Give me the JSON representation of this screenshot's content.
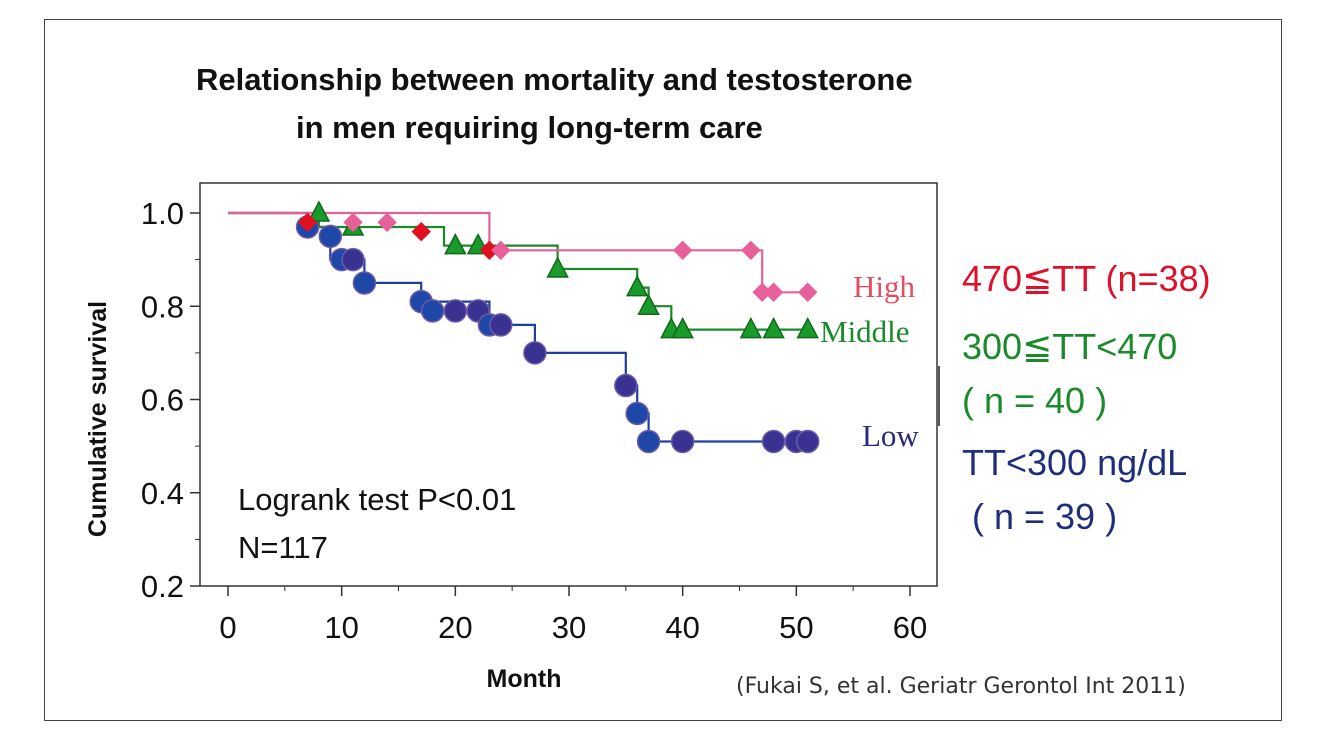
{
  "title_line1": "Relationship between mortality and testosterone",
  "title_line2": "in men requiring long-term care",
  "stats_line1": "Logrank test  P<0.01",
  "stats_line2": "N=117",
  "citation": "(Fukai S, et al. Geriatr Gerontol Int 2011)",
  "right_legend": {
    "high": "470≦TT (n=38)",
    "middle_line1": "300≦TT<470",
    "middle_line2": "( n = 40 )",
    "low_line1": "TT<300 ng/dL",
    "low_line2": "( n = 39 )"
  },
  "colors": {
    "high_line": "#e8609a",
    "high_marker": "#e8609a",
    "high_marker_alt": "#e01020",
    "middle_line": "#1a8a2a",
    "middle_marker_fill": "#1a9a2a",
    "middle_marker_stroke": "#0f6a1a",
    "low_line": "#1f3f9a",
    "low_marker_blue": "#1f47a8",
    "low_marker_purple": "#3a3290",
    "high_label": "#e05060",
    "middle_label": "#1a8a2a",
    "low_label": "#2a2a7a"
  },
  "chart_data": {
    "type": "line",
    "subtype": "kaplan-meier",
    "xlabel": "Month",
    "ylabel": "Cumulative survival",
    "xlim": [
      -2,
      62
    ],
    "ylim": [
      0.2,
      1.04
    ],
    "xticks": [
      "0",
      "10",
      "20",
      "30",
      "40",
      "50",
      "60"
    ],
    "xtick_values": [
      0,
      10,
      20,
      30,
      40,
      50,
      60
    ],
    "yticks": [
      "1.0",
      "0.8",
      "0.6",
      "0.4",
      "0.2"
    ],
    "ytick_values": [
      1.0,
      0.8,
      0.6,
      0.4,
      0.2
    ],
    "series": [
      {
        "name": "High",
        "key": "high",
        "steps": [
          [
            0,
            1.0
          ],
          [
            23,
            1.0
          ],
          [
            23,
            0.92
          ],
          [
            47,
            0.92
          ],
          [
            47,
            0.83
          ],
          [
            51,
            0.83
          ]
        ],
        "markers": [
          {
            "x": 7,
            "y": 0.98,
            "alt": true
          },
          {
            "x": 11,
            "y": 0.98
          },
          {
            "x": 14,
            "y": 0.98
          },
          {
            "x": 17,
            "y": 0.96,
            "alt": true
          },
          {
            "x": 23,
            "y": 0.92,
            "alt": true
          },
          {
            "x": 24,
            "y": 0.92
          },
          {
            "x": 40,
            "y": 0.92
          },
          {
            "x": 46,
            "y": 0.92
          },
          {
            "x": 47,
            "y": 0.83
          },
          {
            "x": 48,
            "y": 0.83
          },
          {
            "x": 51,
            "y": 0.83
          }
        ]
      },
      {
        "name": "Middle",
        "key": "middle",
        "steps": [
          [
            0,
            1.0
          ],
          [
            8,
            1.0
          ],
          [
            8,
            0.97
          ],
          [
            19,
            0.97
          ],
          [
            19,
            0.93
          ],
          [
            29,
            0.93
          ],
          [
            29,
            0.88
          ],
          [
            36,
            0.88
          ],
          [
            36,
            0.84
          ],
          [
            37,
            0.84
          ],
          [
            37,
            0.8
          ],
          [
            39,
            0.8
          ],
          [
            39,
            0.75
          ],
          [
            51,
            0.75
          ]
        ],
        "markers": [
          {
            "x": 8,
            "y": 1.0
          },
          {
            "x": 11,
            "y": 0.97
          },
          {
            "x": 20,
            "y": 0.93
          },
          {
            "x": 22,
            "y": 0.93
          },
          {
            "x": 29,
            "y": 0.88
          },
          {
            "x": 36,
            "y": 0.84
          },
          {
            "x": 37,
            "y": 0.8
          },
          {
            "x": 39,
            "y": 0.75
          },
          {
            "x": 40,
            "y": 0.75
          },
          {
            "x": 46,
            "y": 0.75
          },
          {
            "x": 48,
            "y": 0.75
          },
          {
            "x": 51,
            "y": 0.75
          }
        ]
      },
      {
        "name": "Low",
        "key": "low",
        "steps": [
          [
            0,
            1.0
          ],
          [
            7,
            1.0
          ],
          [
            7,
            0.97
          ],
          [
            9,
            0.97
          ],
          [
            9,
            0.9
          ],
          [
            12,
            0.9
          ],
          [
            12,
            0.85
          ],
          [
            17,
            0.85
          ],
          [
            17,
            0.81
          ],
          [
            23,
            0.81
          ],
          [
            23,
            0.76
          ],
          [
            27,
            0.76
          ],
          [
            27,
            0.7
          ],
          [
            35,
            0.7
          ],
          [
            35,
            0.63
          ],
          [
            36,
            0.63
          ],
          [
            36,
            0.57
          ],
          [
            37,
            0.57
          ],
          [
            37,
            0.51
          ],
          [
            51,
            0.51
          ]
        ],
        "markers": [
          {
            "x": 7,
            "y": 0.97,
            "c": "blue"
          },
          {
            "x": 9,
            "y": 0.95,
            "c": "blue"
          },
          {
            "x": 10,
            "y": 0.9,
            "c": "blue"
          },
          {
            "x": 11,
            "y": 0.9,
            "c": "purple"
          },
          {
            "x": 12,
            "y": 0.85,
            "c": "blue"
          },
          {
            "x": 17,
            "y": 0.81,
            "c": "blue"
          },
          {
            "x": 18,
            "y": 0.79,
            "c": "blue"
          },
          {
            "x": 20,
            "y": 0.79,
            "c": "purple"
          },
          {
            "x": 22,
            "y": 0.79,
            "c": "purple"
          },
          {
            "x": 23,
            "y": 0.76,
            "c": "blue"
          },
          {
            "x": 24,
            "y": 0.76,
            "c": "purple"
          },
          {
            "x": 27,
            "y": 0.7,
            "c": "purple"
          },
          {
            "x": 35,
            "y": 0.63,
            "c": "purple"
          },
          {
            "x": 36,
            "y": 0.57,
            "c": "blue"
          },
          {
            "x": 37,
            "y": 0.51,
            "c": "blue"
          },
          {
            "x": 40,
            "y": 0.51,
            "c": "purple"
          },
          {
            "x": 48,
            "y": 0.51,
            "c": "purple"
          },
          {
            "x": 50,
            "y": 0.51,
            "c": "purple"
          },
          {
            "x": 51,
            "y": 0.51,
            "c": "purple"
          }
        ]
      }
    ]
  }
}
